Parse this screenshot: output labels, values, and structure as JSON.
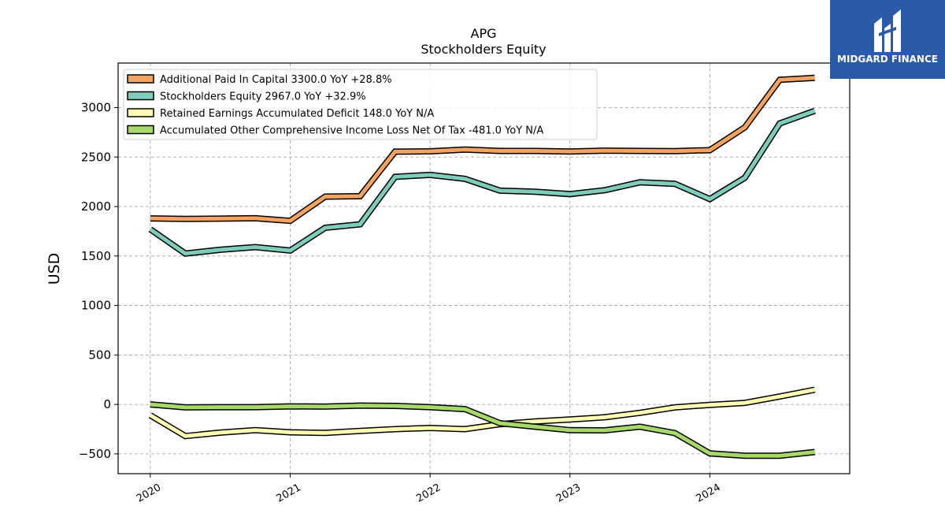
{
  "chart_data": {
    "type": "line",
    "title": "APG",
    "subtitle": "Stockholders  Equity",
    "ylabel": "USD",
    "xlabel": "",
    "ylim": [
      -700,
      3450
    ],
    "xlim": [
      2019.77,
      2025.0
    ],
    "yticks": [
      -500,
      0,
      500,
      1000,
      1500,
      2000,
      2500,
      3000
    ],
    "ytick_labels": [
      "−500",
      "0",
      "500",
      "1000",
      "1500",
      "2000",
      "2500",
      "3000"
    ],
    "xticks": [
      2020,
      2021,
      2022,
      2023,
      2024
    ],
    "xtick_labels": [
      "2020",
      "2021",
      "2022",
      "2023",
      "2024"
    ],
    "grid": true,
    "legend_position": "top-left",
    "x": [
      2020.0,
      2020.25,
      2020.5,
      2020.75,
      2021.0,
      2021.25,
      2021.5,
      2021.75,
      2022.0,
      2022.25,
      2022.5,
      2022.75,
      2023.0,
      2023.25,
      2023.5,
      2023.75,
      2024.0,
      2024.25,
      2024.5,
      2024.75
    ],
    "series": [
      {
        "name": "Additional Paid In Capital  3300.0 YoY +28.8%",
        "color": "#f4a460",
        "values": [
          1880,
          1875,
          1878,
          1882,
          1855,
          2100,
          2105,
          2555,
          2558,
          2575,
          2562,
          2562,
          2556,
          2565,
          2562,
          2560,
          2570,
          2800,
          3280,
          3300
        ]
      },
      {
        "name": "Stockholders Equity  2967.0 YoY +32.9%",
        "color": "#7ecdbb",
        "values": [
          1770,
          1525,
          1563,
          1590,
          1555,
          1785,
          1820,
          2300,
          2320,
          2280,
          2160,
          2150,
          2125,
          2165,
          2245,
          2230,
          2075,
          2290,
          2840,
          2967
        ]
      },
      {
        "name": "Retained Earnings Accumulated Deficit  148.0 YoY N/A",
        "color": "#ffffb3",
        "values": [
          -110,
          -320,
          -285,
          -260,
          -282,
          -288,
          -268,
          -250,
          -238,
          -250,
          -200,
          -172,
          -152,
          -130,
          -85,
          -30,
          -5,
          15,
          80,
          148
        ]
      },
      {
        "name": "Accumulated Other Comprehensive Income Loss Net Of Tax  -481.0 YoY N/A",
        "color": "#a6d96a",
        "values": [
          0,
          -30,
          -28,
          -28,
          -20,
          -22,
          -12,
          -15,
          -28,
          -48,
          -190,
          -225,
          -260,
          -262,
          -225,
          -290,
          -495,
          -518,
          -518,
          -481
        ]
      }
    ]
  },
  "logo": {
    "text": "MIDGARD FINANCE",
    "background": "#2a5aa8"
  }
}
